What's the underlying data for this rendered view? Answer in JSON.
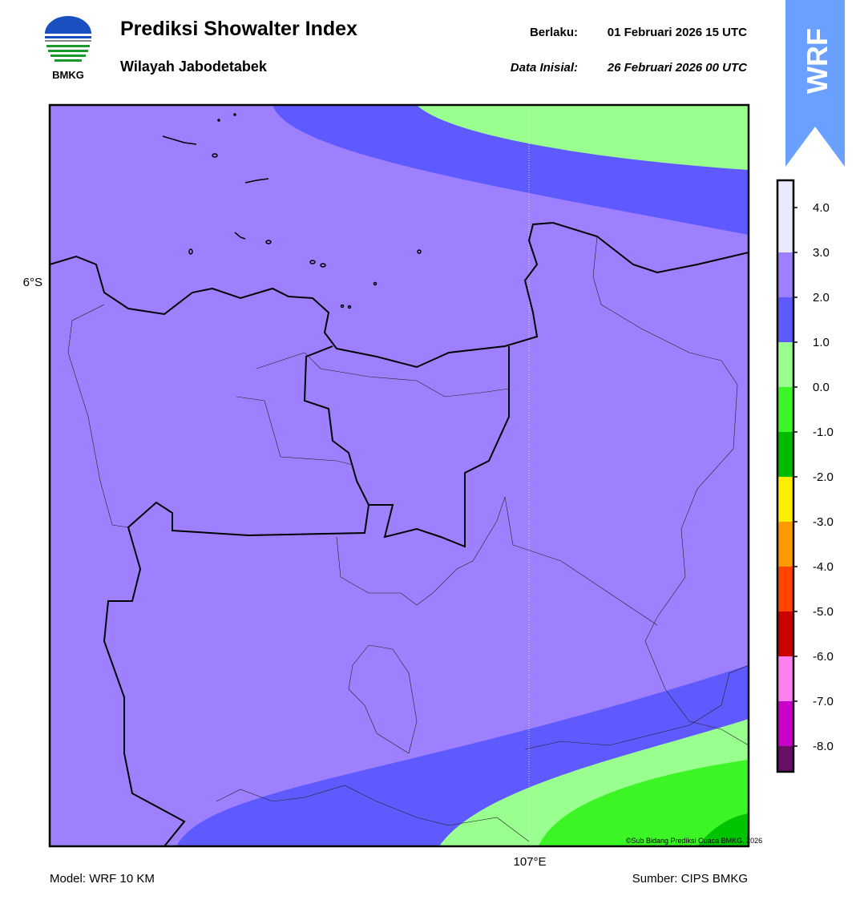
{
  "logo": {
    "label": "BMKG"
  },
  "header": {
    "title": "Prediksi Showalter Index",
    "subtitle": "Wilayah Jabodetabek",
    "valid_label": "Berlaku:",
    "valid_time": "01 Februari 2026 15 UTC",
    "init_label": "Data Inisial:",
    "init_time": "26 Februari 2026 00 UTC"
  },
  "badge": "WRF",
  "map": {
    "lat_label": "6°S",
    "lon_label": "107°E",
    "copyright": "©Sub Bidang Prediksi Cuaca BMKG, 2026"
  },
  "colorbar": {
    "ticks": [
      "4.0",
      "3.0",
      "2.0",
      "1.0",
      "0.0",
      "-1.0",
      "-2.0",
      "-3.0",
      "-4.0",
      "-5.0",
      "-6.0",
      "-7.0",
      "-8.0"
    ]
  },
  "footer": {
    "model": "Model: WRF 10 KM",
    "source": "Sumber: CIPS BMKG"
  }
}
